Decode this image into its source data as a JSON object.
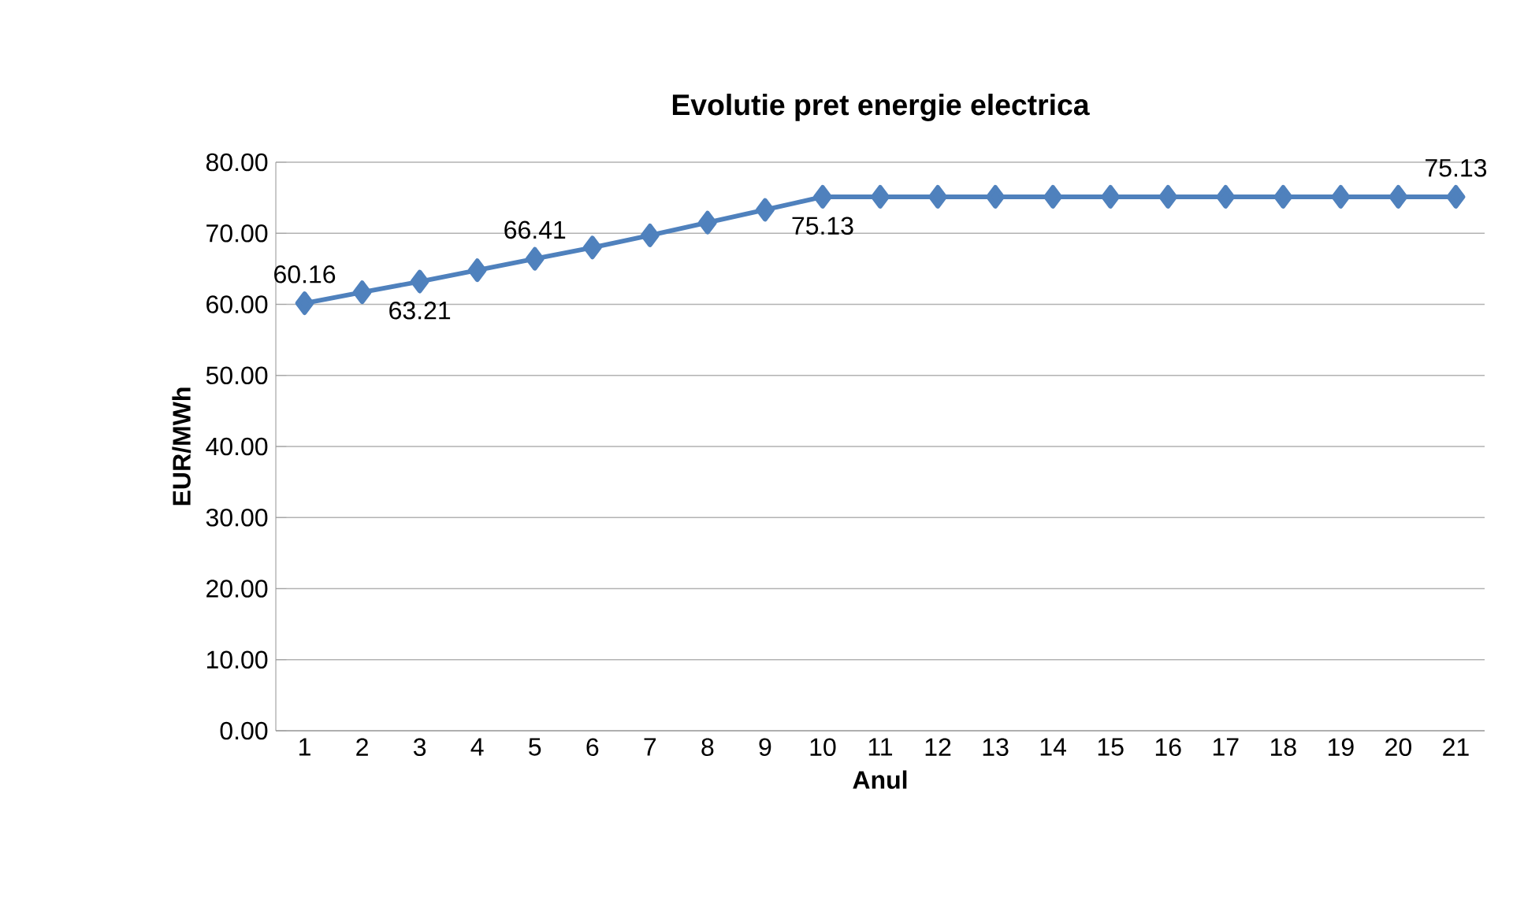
{
  "chart_data": {
    "type": "line",
    "title": "Evolutie pret energie electrica",
    "xlabel": "Anul",
    "ylabel": "EUR/MWh",
    "categories": [
      "1",
      "2",
      "3",
      "4",
      "5",
      "6",
      "7",
      "8",
      "9",
      "10",
      "11",
      "12",
      "13",
      "14",
      "15",
      "16",
      "17",
      "18",
      "19",
      "20",
      "21"
    ],
    "values": [
      60.16,
      61.7,
      63.21,
      64.8,
      66.41,
      68.0,
      69.7,
      71.5,
      73.3,
      75.13,
      75.13,
      75.13,
      75.13,
      75.13,
      75.13,
      75.13,
      75.13,
      75.13,
      75.13,
      75.13,
      75.13
    ],
    "value_labels": [
      "60.16",
      null,
      "63.21",
      null,
      "66.41",
      null,
      null,
      null,
      null,
      "75.13",
      null,
      null,
      null,
      null,
      null,
      null,
      null,
      null,
      null,
      null,
      "75.13"
    ],
    "color": "#4f81bd",
    "marker": "diamond",
    "line_style": "solid",
    "grid": "y",
    "ylim": [
      0,
      80
    ],
    "yticks": [
      {
        "value": 0,
        "label": "0.00"
      },
      {
        "value": 10,
        "label": "10.00"
      },
      {
        "value": 20,
        "label": "20.00"
      },
      {
        "value": 30,
        "label": "30.00"
      },
      {
        "value": 40,
        "label": "40.00"
      },
      {
        "value": 50,
        "label": "50.00"
      },
      {
        "value": 60,
        "label": "60.00"
      },
      {
        "value": 70,
        "label": "70.00"
      },
      {
        "value": 80,
        "label": "80.00"
      }
    ]
  }
}
